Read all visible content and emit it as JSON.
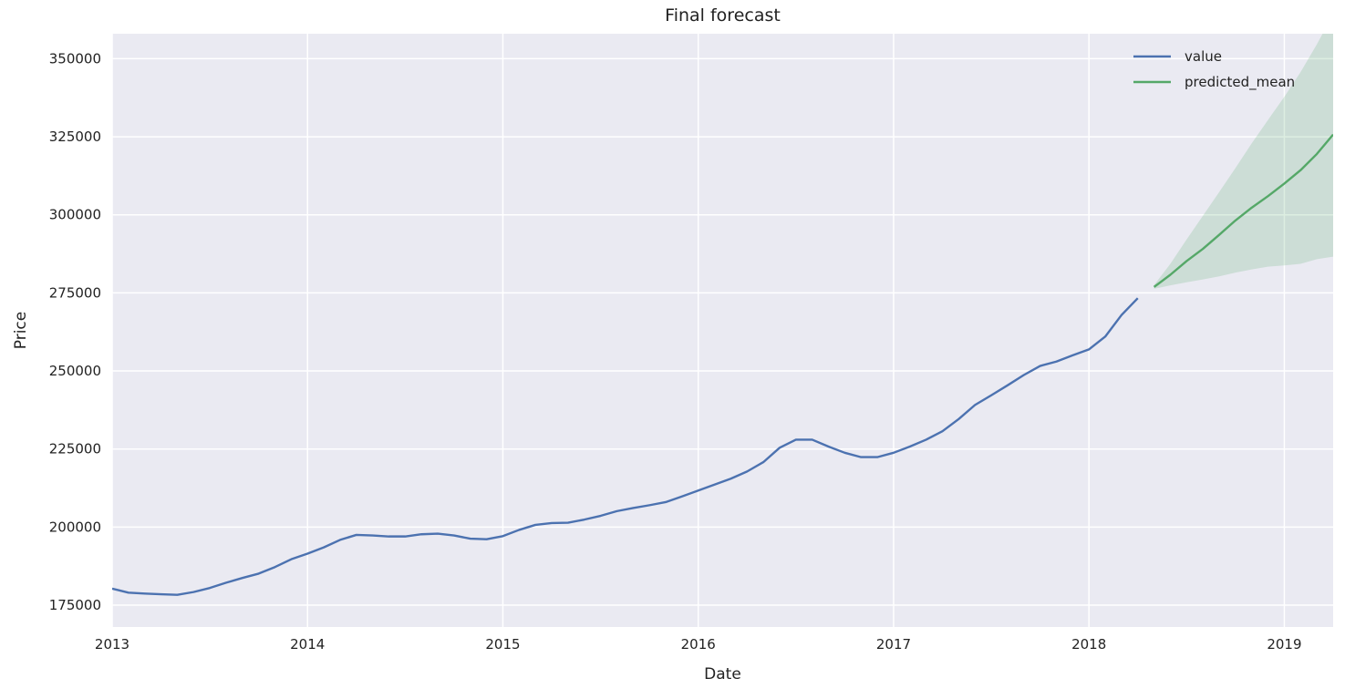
{
  "chart_data": {
    "type": "line",
    "title": "Final forecast",
    "xlabel": "Date",
    "ylabel": "Price",
    "xlim": [
      "2013-01",
      "2019-04"
    ],
    "ylim": [
      168000,
      358000
    ],
    "x_ticks": [
      "2013",
      "2014",
      "2015",
      "2016",
      "2017",
      "2018",
      "2019"
    ],
    "y_ticks": [
      175000,
      200000,
      225000,
      250000,
      275000,
      300000,
      325000,
      350000
    ],
    "grid": true,
    "legend_position": "top-right",
    "colors": {
      "value": "#4c72b0",
      "predicted_mean": "#55a868",
      "confidence_band": "#55a868",
      "background": "#eaeaf2",
      "grid": "#ffffff"
    },
    "series": [
      {
        "name": "value",
        "x": [
          "2013-01",
          "2013-02",
          "2013-03",
          "2013-04",
          "2013-05",
          "2013-06",
          "2013-07",
          "2013-08",
          "2013-09",
          "2013-10",
          "2013-11",
          "2013-12",
          "2014-01",
          "2014-02",
          "2014-03",
          "2014-04",
          "2014-05",
          "2014-06",
          "2014-07",
          "2014-08",
          "2014-09",
          "2014-10",
          "2014-11",
          "2014-12",
          "2015-01",
          "2015-02",
          "2015-03",
          "2015-04",
          "2015-05",
          "2015-06",
          "2015-07",
          "2015-08",
          "2015-09",
          "2015-10",
          "2015-11",
          "2015-12",
          "2016-01",
          "2016-02",
          "2016-03",
          "2016-04",
          "2016-05",
          "2016-06",
          "2016-07",
          "2016-08",
          "2016-09",
          "2016-10",
          "2016-11",
          "2016-12",
          "2017-01",
          "2017-02",
          "2017-03",
          "2017-04",
          "2017-05",
          "2017-06",
          "2017-07",
          "2017-08",
          "2017-09",
          "2017-10",
          "2017-11",
          "2017-12",
          "2018-01",
          "2018-02",
          "2018-03",
          "2018-04"
        ],
        "values": [
          180300,
          179000,
          178700,
          178500,
          178300,
          179200,
          180500,
          182200,
          183700,
          185100,
          187200,
          189700,
          191500,
          193500,
          195900,
          197500,
          197300,
          197000,
          197000,
          197700,
          197900,
          197300,
          196300,
          196100,
          197100,
          199100,
          200700,
          201300,
          201400,
          202400,
          203600,
          205100,
          206100,
          207000,
          208000,
          209800,
          211700,
          213600,
          215500,
          217800,
          220800,
          225400,
          228000,
          228000,
          225800,
          223800,
          222400,
          222400,
          223800,
          225800,
          228000,
          230700,
          234600,
          239100,
          242200,
          245400,
          248700,
          251600,
          253000,
          255000,
          256900,
          261000,
          267900,
          273300
        ]
      },
      {
        "name": "predicted_mean",
        "x": [
          "2018-05",
          "2018-06",
          "2018-07",
          "2018-08",
          "2018-09",
          "2018-10",
          "2018-11",
          "2018-12",
          "2019-01",
          "2019-02",
          "2019-03",
          "2019-04"
        ],
        "values": [
          276900,
          280800,
          285200,
          289100,
          293600,
          298200,
          302300,
          306000,
          310000,
          314300,
          319500,
          325700
        ],
        "lower": [
          276300,
          277400,
          278400,
          279300,
          280300,
          281500,
          282500,
          283400,
          283800,
          284300,
          285800,
          286600
        ],
        "upper": [
          277500,
          284300,
          292100,
          299700,
          307300,
          315000,
          322900,
          330400,
          337800,
          345700,
          354600,
          364300
        ]
      }
    ]
  }
}
